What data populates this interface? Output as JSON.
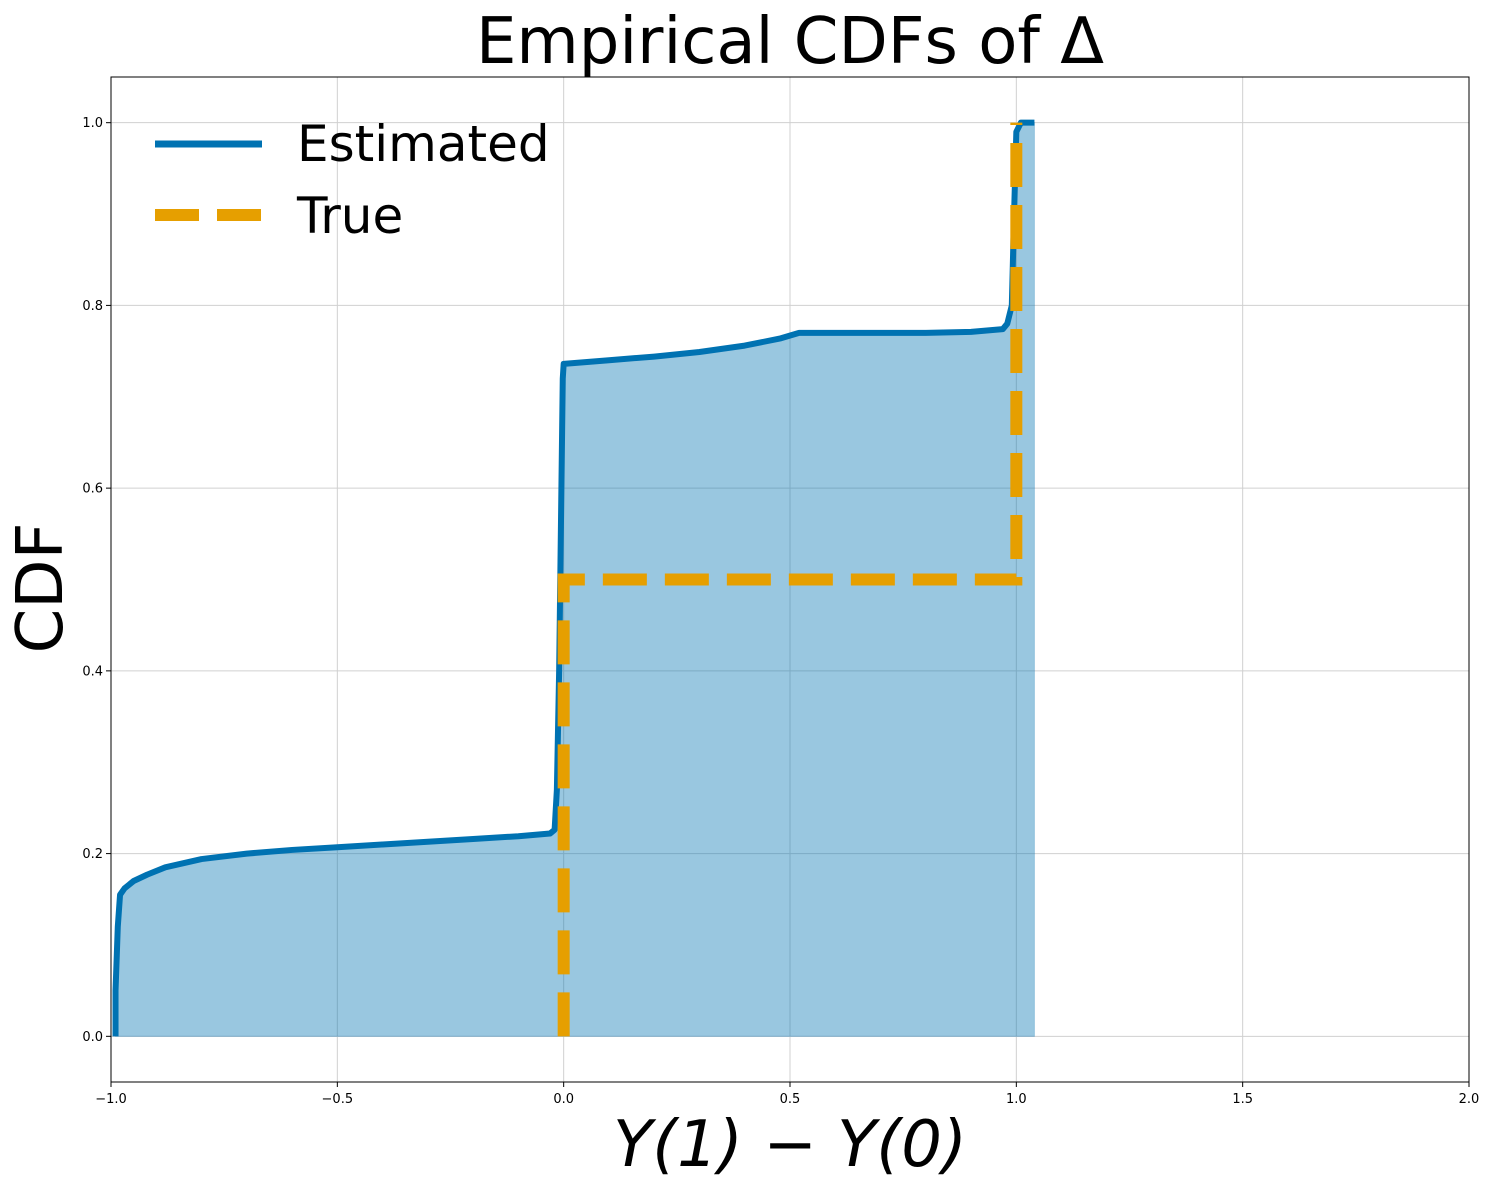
{
  "chart_data": {
    "type": "line",
    "title": "Empirical CDFs of Δ",
    "xlabel": "Y(1) − Y(0)",
    "ylabel": "CDF",
    "xlim": [
      -1.0,
      2.0
    ],
    "ylim": [
      -0.05,
      1.05
    ],
    "grid": true,
    "legend_position": "top-left",
    "xticks": [
      -1.0,
      -0.5,
      0.0,
      0.5,
      1.0,
      1.5,
      2.0
    ],
    "xtick_labels": [
      "−1.0",
      "−0.5",
      "0.0",
      "0.5",
      "1.0",
      "1.5",
      "2.0"
    ],
    "yticks": [
      0.0,
      0.2,
      0.4,
      0.6,
      0.8,
      1.0
    ],
    "ytick_labels": [
      "0.0",
      "0.2",
      "0.4",
      "0.6",
      "0.8",
      "1.0"
    ],
    "series": [
      {
        "name": "Estimated",
        "style": "solid",
        "color": "#0072b2",
        "fill_color": "#0072b2",
        "fill_opacity": 0.4,
        "fill_to_x": 1.04,
        "x": [
          -0.99,
          -0.99,
          -0.985,
          -0.98,
          -0.97,
          -0.95,
          -0.92,
          -0.88,
          -0.8,
          -0.7,
          -0.6,
          -0.5,
          -0.4,
          -0.3,
          -0.2,
          -0.1,
          -0.03,
          -0.02,
          -0.015,
          -0.01,
          -0.005,
          -0.002,
          0.0,
          0.1,
          0.2,
          0.3,
          0.4,
          0.48,
          0.52,
          0.6,
          0.8,
          0.9,
          0.97,
          0.98,
          0.99,
          0.995,
          1.0,
          1.01,
          1.04
        ],
        "y": [
          0.0,
          0.05,
          0.12,
          0.155,
          0.162,
          0.17,
          0.177,
          0.185,
          0.194,
          0.2,
          0.204,
          0.207,
          0.21,
          0.213,
          0.216,
          0.219,
          0.222,
          0.226,
          0.27,
          0.4,
          0.6,
          0.72,
          0.736,
          0.74,
          0.744,
          0.749,
          0.756,
          0.764,
          0.77,
          0.77,
          0.77,
          0.771,
          0.774,
          0.78,
          0.8,
          0.9,
          0.99,
          1.0,
          1.0
        ]
      },
      {
        "name": "True",
        "style": "dashed",
        "color": "#e69f00",
        "x": [
          0.0,
          0.0,
          1.0,
          1.0
        ],
        "y": [
          0.0,
          0.5,
          0.5,
          1.0
        ]
      }
    ]
  }
}
